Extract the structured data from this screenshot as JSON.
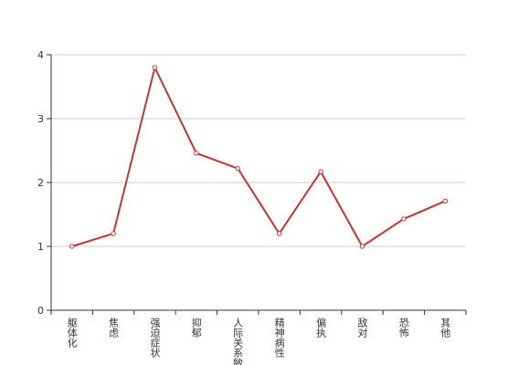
{
  "chart_data": {
    "type": "line",
    "categories": [
      "躯体化",
      "焦虑",
      "强迫症状",
      "抑郁",
      "人际关系敏感",
      "精神病性",
      "偏执",
      "敌对",
      "恐怖",
      "其他"
    ],
    "series": [
      {
        "color": "#c23531",
        "values": [
          1.0,
          1.2,
          3.8,
          2.46,
          2.22,
          1.2,
          2.17,
          1.0,
          1.43,
          1.71
        ]
      }
    ],
    "ylim": [
      0,
      4
    ],
    "yticks": [
      0,
      1,
      2,
      3,
      4
    ],
    "grid": true
  }
}
